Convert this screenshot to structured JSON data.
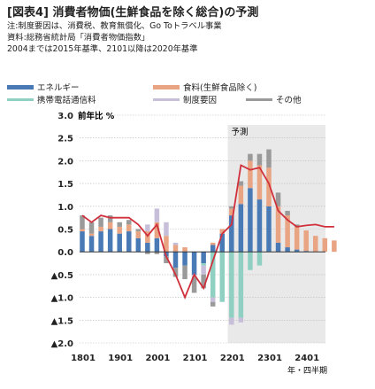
{
  "header": {
    "title": "[図表4] 消費者物価(生鮮食品を除く総合)の予測",
    "note1": "注:制度要因は、消費税、教育無償化、Go Toトラベル事業",
    "note2": "資料:総務省統計局「消費者物価指数」",
    "note3": "2004までは2015年基準、2101以降は2020年基準"
  },
  "colors": {
    "energy": "#4a7ab5",
    "food": "#e8a483",
    "mobile": "#8fd0c3",
    "policy": "#c7bfd9",
    "other": "#9a9a9a",
    "total": "#d0303c",
    "forecast_bg": "#e9e9e9"
  },
  "legend": [
    {
      "key": "energy",
      "label": "エネルギー"
    },
    {
      "key": "food",
      "label": "食料(生鮮食品除く)"
    },
    {
      "key": "mobile",
      "label": "携帯電話通信料"
    },
    {
      "key": "policy",
      "label": "制度要因"
    },
    {
      "key": "other",
      "label": "その他"
    }
  ],
  "chart_data": {
    "type": "bar",
    "stacked": true,
    "ylabel": "前年比 %",
    "xlabel": "年・四半期",
    "forecast_label": "予測",
    "forecast_start": "2201",
    "ylim": [
      -2.0,
      3.0
    ],
    "yticks": [
      3.0,
      2.5,
      2.0,
      1.5,
      1.0,
      0.5,
      0.0,
      -0.5,
      -1.0,
      -1.5,
      -2.0
    ],
    "ytick_labels": [
      "3.0",
      "2.5",
      "2.0",
      "1.5",
      "1.0",
      "0.5",
      "0.0",
      "▲0.5",
      "▲1.0",
      "▲1.5",
      "▲2.0"
    ],
    "xtick_labels": [
      "1801",
      "1901",
      "2001",
      "2101",
      "2201",
      "2301",
      "2401"
    ],
    "categories": [
      "1801",
      "1802",
      "1803",
      "1804",
      "1901",
      "1902",
      "1903",
      "1904",
      "2001",
      "2002",
      "2003",
      "2004",
      "2101",
      "2102",
      "2103",
      "2104",
      "2201",
      "2202",
      "2203",
      "2204",
      "2301",
      "2302",
      "2303",
      "2304",
      "2401",
      "2402",
      "2403",
      "2404"
    ],
    "series": [
      {
        "key": "energy",
        "name": "エネルギー",
        "values": [
          0.45,
          0.35,
          0.45,
          0.5,
          0.4,
          0.45,
          0.3,
          0.2,
          0.3,
          -0.1,
          -0.35,
          -0.3,
          -0.5,
          -0.25,
          0.15,
          0.4,
          0.8,
          1.05,
          1.4,
          1.15,
          1.0,
          0.2,
          0.1,
          0.05,
          0.02,
          0.0,
          0.0,
          0.0
        ]
      },
      {
        "key": "food",
        "name": "食料(生鮮食品除く)",
        "values": [
          0.05,
          0.05,
          0.1,
          0.15,
          0.15,
          0.15,
          0.15,
          0.25,
          0.35,
          0.35,
          0.15,
          0.1,
          0.0,
          0.0,
          0.05,
          0.1,
          0.15,
          0.4,
          0.6,
          0.75,
          0.85,
          0.8,
          0.7,
          0.5,
          0.45,
          0.35,
          0.3,
          0.25
        ]
      },
      {
        "key": "mobile",
        "name": "携帯電話通信料",
        "values": [
          0.0,
          0.0,
          0.0,
          0.0,
          0.0,
          0.0,
          0.0,
          0.0,
          0.0,
          0.0,
          0.0,
          0.0,
          0.0,
          -0.05,
          -1.0,
          -1.1,
          -1.45,
          -1.45,
          -0.4,
          -0.3,
          0.0,
          0.0,
          0.0,
          0.0,
          0.0,
          0.0,
          0.0,
          0.0
        ]
      },
      {
        "key": "policy",
        "name": "制度要因",
        "values": [
          0.0,
          0.0,
          0.0,
          0.0,
          0.0,
          0.0,
          0.0,
          0.15,
          0.3,
          0.3,
          0.05,
          0.0,
          -0.05,
          -0.2,
          -0.1,
          0.0,
          -0.15,
          -0.1,
          0.0,
          0.0,
          0.0,
          0.0,
          0.0,
          0.0,
          0.0,
          0.0,
          0.0,
          0.0
        ]
      },
      {
        "key": "other",
        "name": "その他",
        "values": [
          0.3,
          0.25,
          0.2,
          0.15,
          0.1,
          0.1,
          0.05,
          -0.05,
          -0.05,
          -0.15,
          -0.2,
          -0.3,
          -0.35,
          -0.3,
          -0.1,
          0.0,
          0.05,
          0.1,
          0.15,
          0.25,
          0.4,
          0.3,
          0.1,
          0.05,
          0.0,
          0.0,
          0.0,
          0.0
        ]
      },
      {
        "key": "total",
        "name": "生鮮食品を除く総合",
        "type": "line",
        "values": [
          0.8,
          0.65,
          0.8,
          0.75,
          0.75,
          0.75,
          0.6,
          0.35,
          0.6,
          -0.1,
          -0.5,
          -1.0,
          -0.5,
          -0.8,
          -0.2,
          0.4,
          0.6,
          1.9,
          1.8,
          1.85,
          1.5,
          0.9,
          0.7,
          0.55,
          0.58,
          0.6,
          0.55,
          0.55
        ]
      }
    ]
  }
}
